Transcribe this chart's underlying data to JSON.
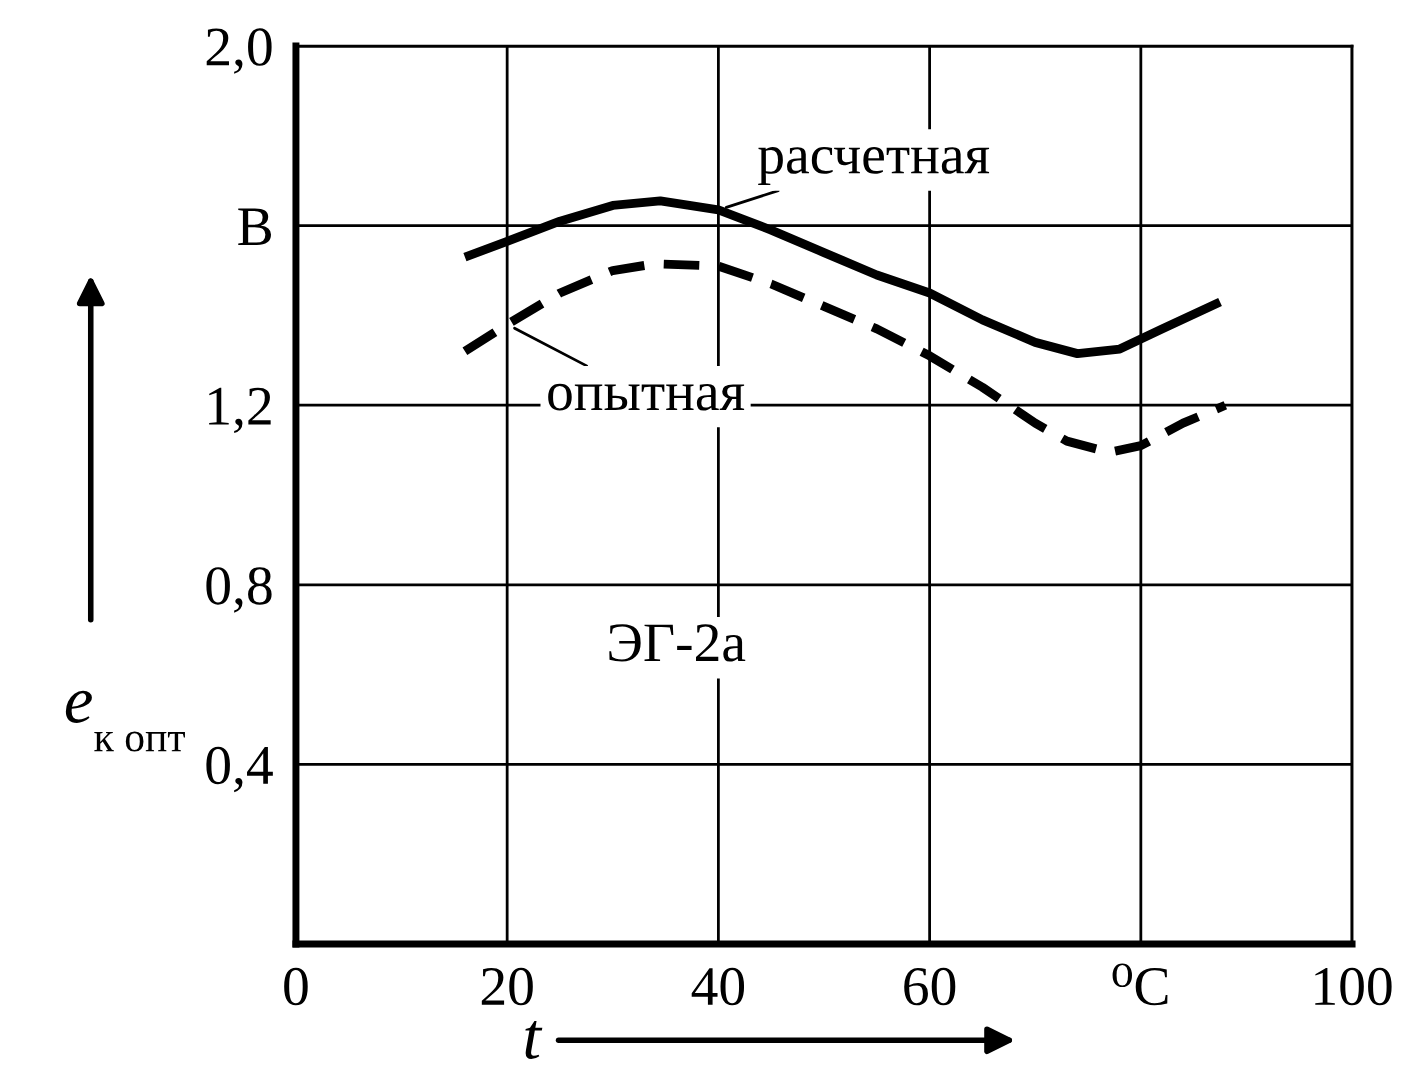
{
  "chart_data": {
    "type": "line",
    "xlabel": "t",
    "ylabel": "e$_{к опт}$",
    "xlim": [
      0,
      100
    ],
    "ylim": [
      0,
      2.0
    ],
    "xticks": [
      0,
      20,
      40,
      60,
      {
        "value": 80,
        "label": "⁰C"
      },
      100
    ],
    "yticks": [
      {
        "value": 0.4,
        "label": "0,4"
      },
      {
        "value": 0.8,
        "label": "0,8"
      },
      {
        "value": 1.2,
        "label": "1,2"
      },
      {
        "value": 1.6,
        "label": "В"
      },
      {
        "value": 2.0,
        "label": "2,0"
      }
    ],
    "grid": true,
    "marker": "none",
    "series": [
      {
        "name": "расчетная",
        "color": "#000000",
        "line_style": "solid",
        "x": [
          16,
          20,
          25,
          30,
          34.5,
          40,
          45,
          50,
          55,
          60,
          65,
          70,
          74,
          78,
          82,
          87.5
        ],
        "values": [
          1.53,
          1.565,
          1.61,
          1.645,
          1.655,
          1.635,
          1.59,
          1.54,
          1.49,
          1.45,
          1.39,
          1.34,
          1.315,
          1.325,
          1.37,
          1.43
        ]
      },
      {
        "name": "опытная",
        "color": "#000000",
        "line_style": "dashed",
        "x": [
          16,
          20,
          25,
          30,
          34,
          40,
          45,
          50,
          55,
          60,
          65,
          70,
          73,
          77,
          80,
          84,
          88
        ],
        "values": [
          1.32,
          1.38,
          1.45,
          1.5,
          1.515,
          1.51,
          1.47,
          1.42,
          1.37,
          1.31,
          1.24,
          1.16,
          1.12,
          1.095,
          1.11,
          1.16,
          1.2
        ]
      }
    ],
    "annotations": [
      "ЭГ-2а"
    ]
  }
}
